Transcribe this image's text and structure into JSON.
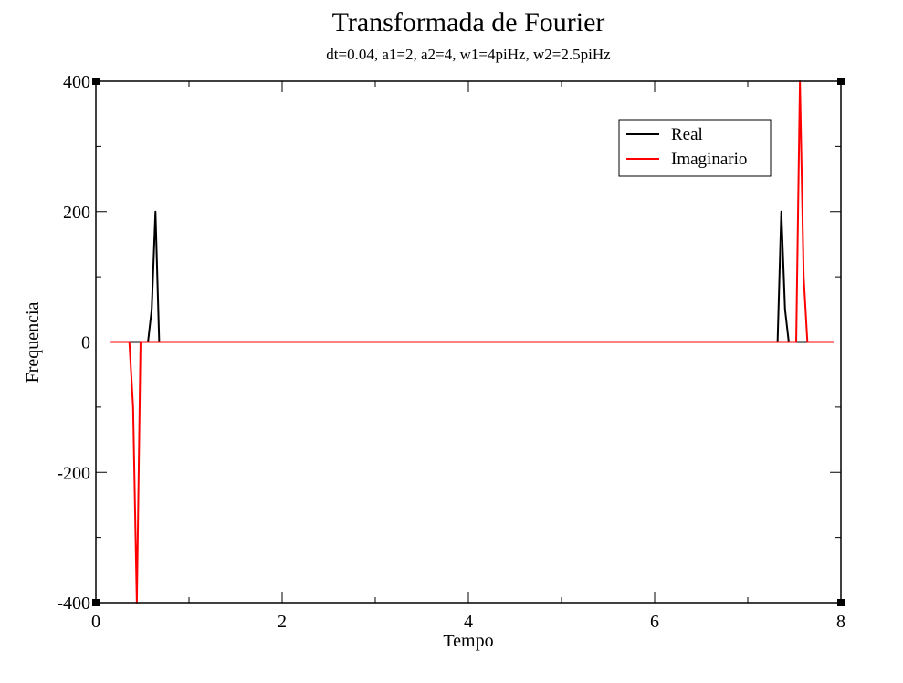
{
  "chart_data": {
    "type": "line",
    "title": "Transformada de Fourier",
    "subtitle": "dt=0.04, a1=2, a2=4, w1=4piHz, w2=2.5piHz",
    "xlabel": "Tempo",
    "ylabel": "Frequencia",
    "xlim": [
      0,
      8
    ],
    "ylim": [
      -400,
      400
    ],
    "x_ticks": [
      0,
      2,
      4,
      6,
      8
    ],
    "y_ticks": [
      -400,
      -200,
      0,
      200,
      400
    ],
    "x_tick_labels": [
      "0",
      "2",
      "4",
      "6",
      "8"
    ],
    "y_tick_labels": [
      "-400",
      "-200",
      "0",
      "200",
      "400"
    ],
    "grid": false,
    "legend_position": "top-right",
    "series": [
      {
        "name": "Real",
        "color": "#000000",
        "x": [
          0.16,
          0.56,
          0.6,
          0.64,
          0.68,
          7.32,
          7.36,
          7.4,
          7.44,
          7.92
        ],
        "y": [
          0,
          0,
          50,
          200,
          0,
          0,
          200,
          50,
          0,
          0
        ]
      },
      {
        "name": "Imaginario",
        "color": "#ff0000",
        "x": [
          0.16,
          0.36,
          0.4,
          0.44,
          0.48,
          7.52,
          7.56,
          7.6,
          7.64,
          7.92
        ],
        "y": [
          0,
          0,
          -100,
          -400,
          0,
          0,
          400,
          100,
          0,
          0
        ]
      }
    ]
  }
}
